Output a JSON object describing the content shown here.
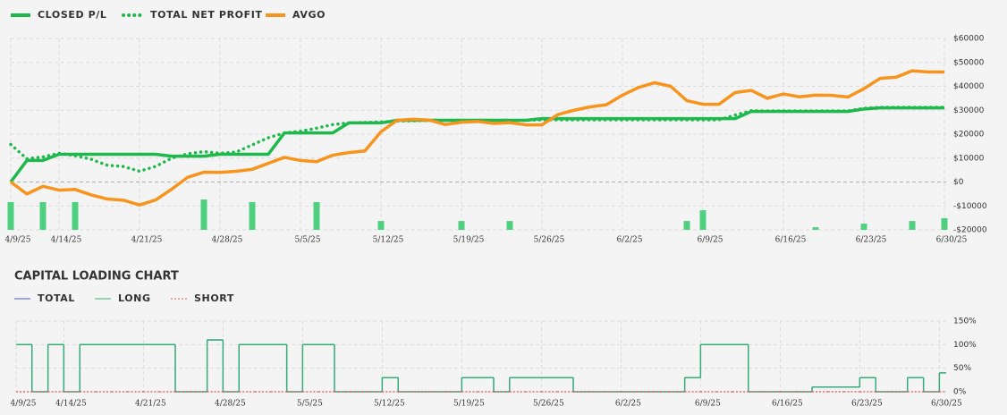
{
  "chart_data": [
    {
      "type": "line",
      "categories": [
        "4/9/25",
        null,
        null,
        "4/14/25",
        null,
        null,
        null,
        null,
        "4/21/25",
        null,
        null,
        null,
        null,
        "4/28/25",
        null,
        null,
        null,
        null,
        "5/5/25",
        null,
        null,
        null,
        null,
        "5/12/25",
        null,
        null,
        null,
        null,
        "5/19/25",
        null,
        null,
        null,
        null,
        "5/26/25",
        null,
        null,
        null,
        null,
        "6/2/25",
        null,
        null,
        null,
        null,
        "6/9/25",
        null,
        null,
        null,
        null,
        "6/16/25",
        null,
        null,
        null,
        null,
        "6/23/25",
        null,
        null,
        null,
        null,
        "6/30/25"
      ],
      "series": [
        {
          "name": "CLOSED P/L",
          "color": "#1fb84c",
          "style": "solid",
          "values": [
            0,
            9000,
            9000,
            11600,
            11600,
            11600,
            11600,
            11600,
            11600,
            11600,
            10800,
            10800,
            10800,
            11600,
            11600,
            11600,
            11600,
            20500,
            20500,
            20500,
            20500,
            24700,
            24700,
            24700,
            25800,
            25800,
            25800,
            25800,
            25800,
            25800,
            25800,
            25800,
            25800,
            26500,
            26500,
            26500,
            26500,
            26500,
            26500,
            26500,
            26500,
            26500,
            26500,
            26500,
            26500,
            26500,
            29500,
            29500,
            29500,
            29500,
            29500,
            29500,
            29500,
            30500,
            31000,
            31000,
            31000,
            31000,
            31000
          ]
        },
        {
          "name": "TOTAL NET PROFIT",
          "color": "#1fb84c",
          "style": "dotted",
          "values": [
            15700,
            9700,
            10500,
            12000,
            11000,
            9500,
            7000,
            6500,
            4500,
            6500,
            10000,
            11800,
            12700,
            12000,
            12500,
            15500,
            18500,
            20500,
            21200,
            22500,
            24000,
            24700,
            24900,
            25100,
            25500,
            25600,
            25800,
            25800,
            25800,
            25800,
            25800,
            25800,
            25800,
            26000,
            26000,
            26000,
            26000,
            26000,
            26000,
            26000,
            26000,
            26000,
            26000,
            26000,
            26000,
            28000,
            29800,
            29700,
            29700,
            29700,
            29700,
            29700,
            29700,
            30800,
            31200,
            31200,
            31200,
            31200,
            31200
          ]
        },
        {
          "name": "AVGO",
          "color": "#f7941d",
          "style": "solid",
          "values": [
            0,
            -5000,
            -1800,
            -3400,
            -3100,
            -5400,
            -7100,
            -7600,
            -9600,
            -7500,
            -3000,
            2000,
            4100,
            4000,
            4500,
            5300,
            7800,
            10300,
            9000,
            8500,
            11200,
            12300,
            13000,
            21000,
            25800,
            26200,
            25900,
            24000,
            25000,
            25300,
            24500,
            24800,
            23900,
            23900,
            28200,
            30000,
            31400,
            32300,
            36300,
            39500,
            41500,
            40000,
            34000,
            32500,
            32500,
            37400,
            38300,
            35000,
            36800,
            35600,
            36300,
            36200,
            35500,
            39000,
            43300,
            43800,
            46500,
            46000,
            46000
          ]
        },
        {
          "kind": "bar",
          "color": "#4fd07f",
          "values": [
            -8400,
            null,
            -8400,
            null,
            -8400,
            null,
            null,
            null,
            null,
            null,
            null,
            null,
            -7300,
            null,
            null,
            -8400,
            null,
            null,
            null,
            -8400,
            null,
            null,
            null,
            -16300,
            null,
            null,
            null,
            null,
            -16300,
            null,
            null,
            -16300,
            null,
            null,
            null,
            null,
            null,
            null,
            null,
            null,
            null,
            null,
            -16300,
            -11800,
            null,
            null,
            null,
            null,
            null,
            null,
            -18900,
            null,
            null,
            -17400,
            null,
            null,
            -16300,
            null,
            -15100
          ]
        }
      ],
      "ylim": [
        -20000,
        60000
      ],
      "yticks": [
        {
          "value": -20000,
          "label": "-$20000"
        },
        {
          "value": -10000,
          "label": "-$10000"
        },
        {
          "value": 0,
          "label": "$0"
        },
        {
          "value": 10000,
          "label": "$10000"
        },
        {
          "value": 20000,
          "label": "$20000"
        },
        {
          "value": 30000,
          "label": "$30000"
        },
        {
          "value": 40000,
          "label": "$40000"
        },
        {
          "value": 50000,
          "label": "$50000"
        },
        {
          "value": 60000,
          "label": "$60000"
        }
      ],
      "grid": true
    },
    {
      "type": "step",
      "title": "CAPITAL LOADING CHART",
      "categories": [
        "4/9/25",
        null,
        null,
        "4/14/25",
        null,
        null,
        null,
        null,
        "4/21/25",
        null,
        null,
        null,
        null,
        "4/28/25",
        null,
        null,
        null,
        null,
        "5/5/25",
        null,
        null,
        null,
        null,
        "5/12/25",
        null,
        null,
        null,
        null,
        "5/19/25",
        null,
        null,
        null,
        null,
        "5/26/25",
        null,
        null,
        null,
        null,
        "6/2/25",
        null,
        null,
        null,
        null,
        "6/9/25",
        null,
        null,
        null,
        null,
        "6/16/25",
        null,
        null,
        null,
        null,
        "6/23/25",
        null,
        null,
        null,
        null,
        "6/30/25"
      ],
      "series": [
        {
          "name": "TOTAL",
          "color": "#3b5bdb",
          "style": "solid",
          "values": [
            100,
            0,
            100,
            0,
            100,
            100,
            100,
            100,
            100,
            100,
            0,
            0,
            110,
            0,
            100,
            100,
            100,
            0,
            100,
            100,
            0,
            0,
            0,
            30,
            0,
            0,
            0,
            0,
            30,
            30,
            0,
            30,
            30,
            30,
            30,
            0,
            0,
            0,
            0,
            0,
            0,
            0,
            30,
            100,
            100,
            100,
            0,
            0,
            0,
            0,
            10,
            10,
            10,
            30,
            0,
            0,
            30,
            0,
            40
          ]
        },
        {
          "name": "LONG",
          "color": "#2fb36b",
          "style": "solid",
          "values": [
            100,
            0,
            100,
            0,
            100,
            100,
            100,
            100,
            100,
            100,
            0,
            0,
            110,
            0,
            100,
            100,
            100,
            0,
            100,
            100,
            0,
            0,
            0,
            30,
            0,
            0,
            0,
            0,
            30,
            30,
            0,
            30,
            30,
            30,
            30,
            0,
            0,
            0,
            0,
            0,
            0,
            0,
            30,
            100,
            100,
            100,
            0,
            0,
            0,
            0,
            10,
            10,
            10,
            30,
            0,
            0,
            30,
            0,
            40
          ]
        },
        {
          "name": "SHORT",
          "color": "#e05555",
          "style": "dotted",
          "values": [
            0,
            0,
            0,
            0,
            0,
            0,
            0,
            0,
            0,
            0,
            0,
            0,
            0,
            0,
            0,
            0,
            0,
            0,
            0,
            0,
            0,
            0,
            0,
            0,
            0,
            0,
            0,
            0,
            0,
            0,
            0,
            0,
            0,
            0,
            0,
            0,
            0,
            0,
            0,
            0,
            0,
            0,
            0,
            0,
            0,
            0,
            0,
            0,
            0,
            0,
            0,
            0,
            0,
            0,
            0,
            0,
            0,
            0,
            0
          ]
        }
      ],
      "ylim": [
        0,
        150
      ],
      "yticks": [
        {
          "value": 0,
          "label": "0%"
        },
        {
          "value": 50,
          "label": "50%"
        },
        {
          "value": 100,
          "label": "100%"
        },
        {
          "value": 150,
          "label": "150%"
        }
      ],
      "grid": true
    }
  ]
}
